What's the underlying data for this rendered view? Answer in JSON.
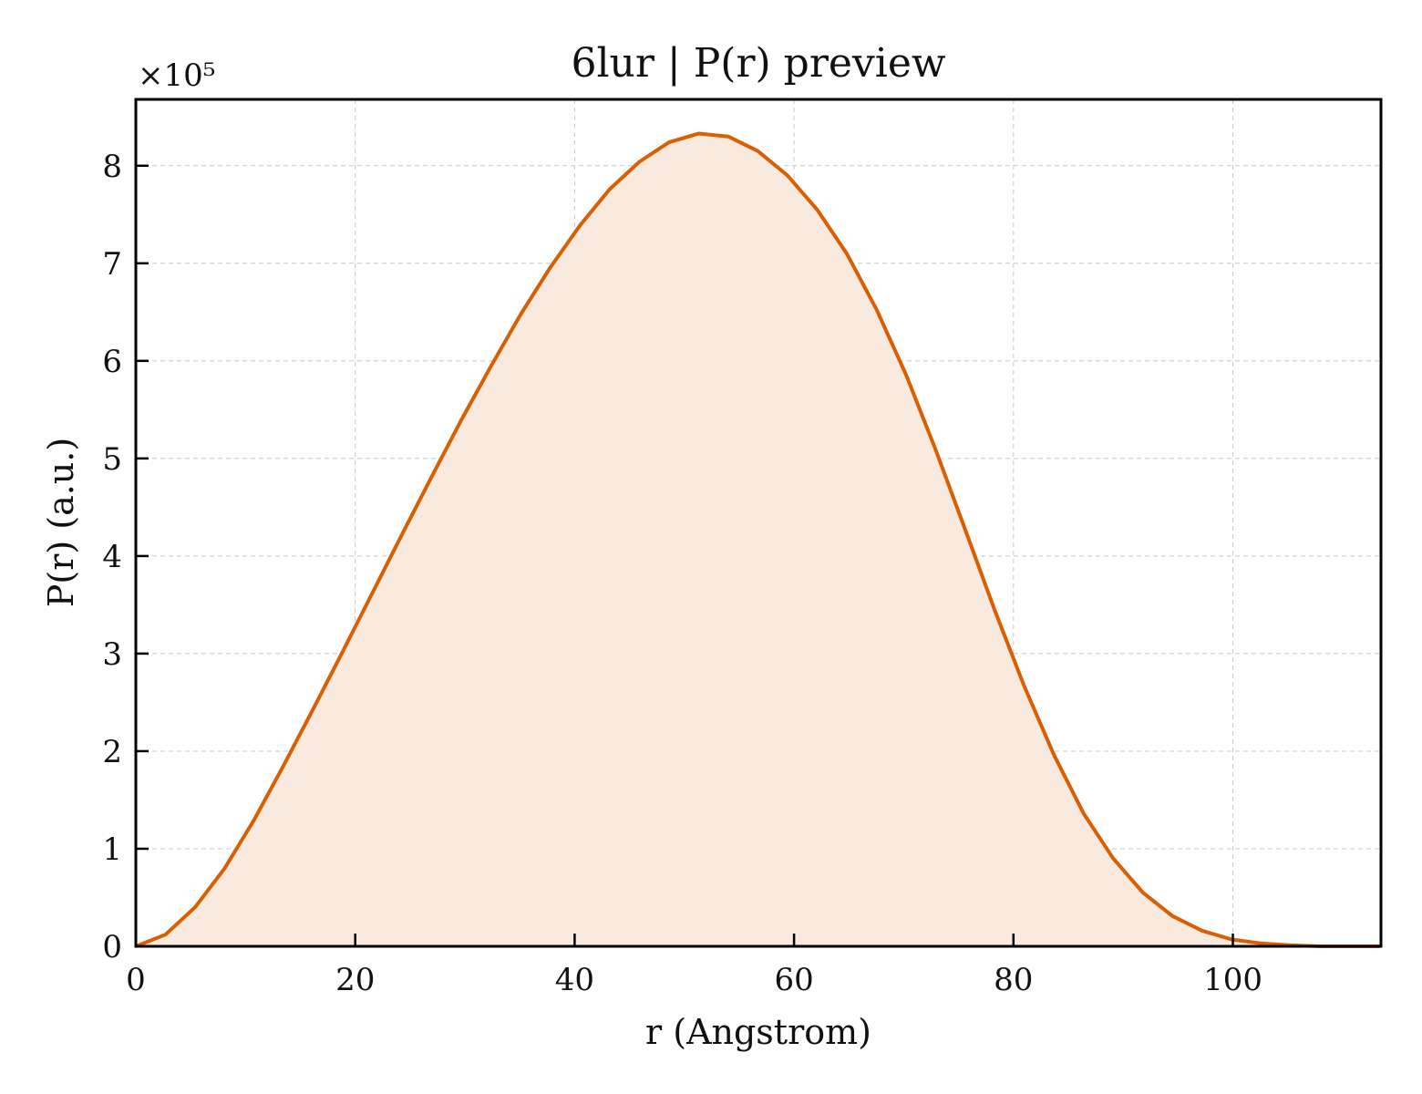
{
  "chart_data": {
    "type": "area",
    "title": "6lur | P(r) preview",
    "xlabel": "r (Angstrom)",
    "ylabel": "P(r) (a.u.)",
    "y_multiplier": "×10⁵",
    "xlim": [
      0,
      113.5
    ],
    "ylim": [
      0,
      8.68
    ],
    "xticks": [
      0,
      20,
      40,
      60,
      80,
      100
    ],
    "xtick_labels": [
      "0",
      "20",
      "40",
      "60",
      "80",
      "100"
    ],
    "yticks": [
      0,
      1,
      2,
      3,
      4,
      5,
      6,
      7,
      8
    ],
    "ytick_labels": [
      "0",
      "1",
      "2",
      "3",
      "4",
      "5",
      "6",
      "7",
      "8"
    ],
    "grid": true,
    "series": [
      {
        "x": [
          0,
          2.7,
          5.4,
          8.1,
          10.8,
          13.5,
          16.2,
          18.9,
          21.6,
          24.3,
          27.0,
          29.7,
          32.4,
          35.1,
          37.8,
          40.5,
          43.2,
          45.9,
          48.6,
          51.3,
          54.0,
          56.7,
          59.4,
          62.1,
          64.8,
          67.5,
          70.2,
          72.9,
          75.6,
          78.3,
          81.0,
          83.7,
          86.4,
          89.1,
          91.8,
          94.5,
          97.2,
          99.9,
          102.6,
          105.3,
          108.0,
          110.7,
          113.4
        ],
        "values": [
          0.0,
          0.12,
          0.4,
          0.8,
          1.3,
          1.86,
          2.44,
          3.03,
          3.63,
          4.23,
          4.82,
          5.4,
          5.95,
          6.48,
          6.96,
          7.39,
          7.76,
          8.04,
          8.24,
          8.33,
          8.3,
          8.15,
          7.9,
          7.55,
          7.1,
          6.53,
          5.86,
          5.09,
          4.27,
          3.44,
          2.66,
          1.96,
          1.36,
          0.9,
          0.55,
          0.31,
          0.16,
          0.07,
          0.03,
          0.01,
          0.0,
          0.0,
          0.0
        ],
        "line_color": "#d95f02",
        "fill_color": "#f8eadf"
      }
    ]
  }
}
